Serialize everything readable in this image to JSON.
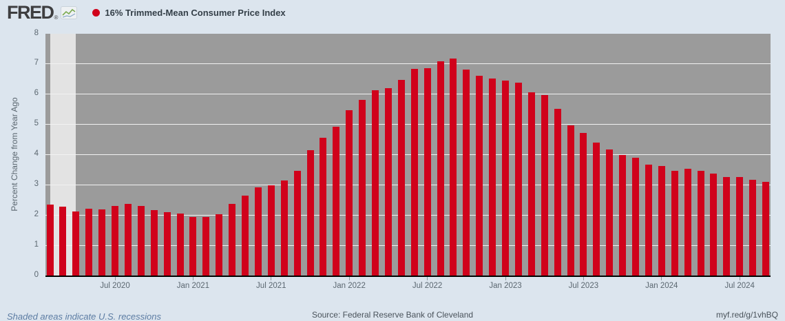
{
  "header": {
    "logo_text": "FRED",
    "registered_mark": "®",
    "legend_label": "16% Trimmed-Mean Consumer Price Index"
  },
  "icons": {
    "legend_marker": "filled-circle",
    "logo_chart_icon": "sparkline-chart"
  },
  "chart_data": {
    "type": "bar",
    "title": "16% Trimmed-Mean Consumer Price Index",
    "xlabel": "",
    "ylabel": "Percent Change from Year Ago",
    "ylim": [
      0,
      8
    ],
    "yticks": [
      0,
      1,
      2,
      3,
      4,
      5,
      6,
      7,
      8
    ],
    "grid": "horizontal light gridlines on gray plot background",
    "legend_position": "top-left",
    "frequency": "monthly",
    "recession_band": {
      "from": "2020-02",
      "to": "2020-04",
      "note": "COVID-19 recession shading"
    },
    "xticks": [
      {
        "label": "Jul 2020",
        "date": "2020-07"
      },
      {
        "label": "Jan 2021",
        "date": "2021-01"
      },
      {
        "label": "Jul 2021",
        "date": "2021-07"
      },
      {
        "label": "Jan 2022",
        "date": "2022-01"
      },
      {
        "label": "Jul 2022",
        "date": "2022-07"
      },
      {
        "label": "Jan 2023",
        "date": "2023-01"
      },
      {
        "label": "Jul 2023",
        "date": "2023-07"
      },
      {
        "label": "Jan 2024",
        "date": "2024-01"
      },
      {
        "label": "Jul 2024",
        "date": "2024-07"
      }
    ],
    "x": [
      "2020-02",
      "2020-03",
      "2020-04",
      "2020-05",
      "2020-06",
      "2020-07",
      "2020-08",
      "2020-09",
      "2020-10",
      "2020-11",
      "2020-12",
      "2021-01",
      "2021-02",
      "2021-03",
      "2021-04",
      "2021-05",
      "2021-06",
      "2021-07",
      "2021-08",
      "2021-09",
      "2021-10",
      "2021-11",
      "2021-12",
      "2022-01",
      "2022-02",
      "2022-03",
      "2022-04",
      "2022-05",
      "2022-06",
      "2022-07",
      "2022-08",
      "2022-09",
      "2022-10",
      "2022-11",
      "2022-12",
      "2023-01",
      "2023-02",
      "2023-03",
      "2023-04",
      "2023-05",
      "2023-06",
      "2023-07",
      "2023-08",
      "2023-09",
      "2023-10",
      "2023-11",
      "2023-12",
      "2024-01",
      "2024-02",
      "2024-03",
      "2024-04",
      "2024-05",
      "2024-06",
      "2024-07",
      "2024-08",
      "2024-09"
    ],
    "values": [
      2.34,
      2.27,
      2.11,
      2.21,
      2.2,
      2.31,
      2.38,
      2.31,
      2.16,
      2.09,
      2.06,
      1.93,
      1.93,
      2.02,
      2.38,
      2.64,
      2.92,
      2.99,
      3.15,
      3.47,
      4.14,
      4.55,
      4.93,
      5.47,
      5.81,
      6.13,
      6.19,
      6.48,
      6.83,
      6.86,
      7.09,
      7.18,
      6.82,
      6.6,
      6.51,
      6.46,
      6.38,
      6.06,
      5.97,
      5.51,
      4.97,
      4.73,
      4.39,
      4.18,
      4.0,
      3.89,
      3.68,
      3.63,
      3.47,
      3.54,
      3.47,
      3.37,
      3.27,
      3.25,
      3.16,
      3.09
    ]
  },
  "footer": {
    "recession_note": "Shaded areas indicate U.S. recessions",
    "source": "Source: Federal Reserve Bank of Cleveland",
    "short_url": "myf.red/g/1vhBQ"
  },
  "colors": {
    "page_bg": "#dce5ee",
    "plot_bg": "#9b9b9b",
    "gridline": "#f2f2f2",
    "recession_band": "#e3e3e3",
    "bar": "#d0021b",
    "axis_line": "#000000"
  }
}
